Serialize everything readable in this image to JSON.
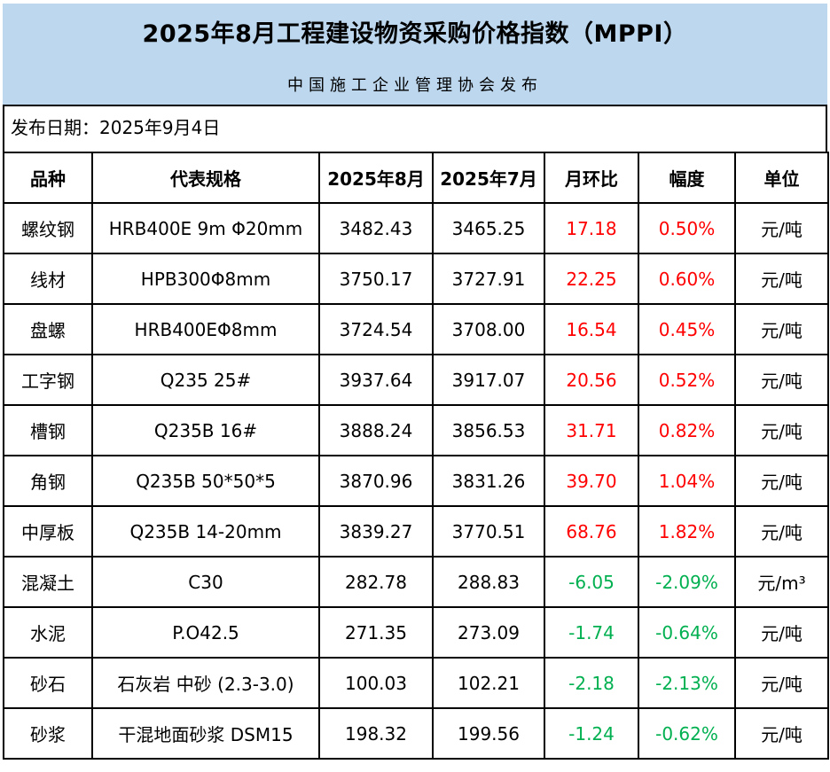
{
  "header": {
    "title": "2025年8月工程建设物资采购价格指数（MPPI）",
    "publisher": "中国施工企业管理协会发布",
    "release_date": "发布日期：2025年9月4日"
  },
  "table": {
    "columns": [
      "品种",
      "代表规格",
      "2025年8月",
      "2025年7月",
      "月环比",
      "幅度",
      "单位"
    ],
    "rows": [
      {
        "variety": "螺纹钢",
        "spec": "HRB400E 9m Φ20mm",
        "price_aug": "3482.43",
        "price_jul": "3465.25",
        "mom_change": "17.18",
        "change_rate": "0.50%",
        "unit": "元/吨",
        "trend": "up"
      },
      {
        "variety": "线材",
        "spec": "HPB300Φ8mm",
        "price_aug": "3750.17",
        "price_jul": "3727.91",
        "mom_change": "22.25",
        "change_rate": "0.60%",
        "unit": "元/吨",
        "trend": "up"
      },
      {
        "variety": "盘螺",
        "spec": "HRB400EΦ8mm",
        "price_aug": "3724.54",
        "price_jul": "3708.00",
        "mom_change": "16.54",
        "change_rate": "0.45%",
        "unit": "元/吨",
        "trend": "up"
      },
      {
        "variety": "工字钢",
        "spec": "Q235 25#",
        "price_aug": "3937.64",
        "price_jul": "3917.07",
        "mom_change": "20.56",
        "change_rate": "0.52%",
        "unit": "元/吨",
        "trend": "up"
      },
      {
        "variety": "槽钢",
        "spec": "Q235B 16#",
        "price_aug": "3888.24",
        "price_jul": "3856.53",
        "mom_change": "31.71",
        "change_rate": "0.82%",
        "unit": "元/吨",
        "trend": "up"
      },
      {
        "variety": "角钢",
        "spec": "Q235B 50*50*5",
        "price_aug": "3870.96",
        "price_jul": "3831.26",
        "mom_change": "39.70",
        "change_rate": "1.04%",
        "unit": "元/吨",
        "trend": "up"
      },
      {
        "variety": "中厚板",
        "spec": "Q235B 14-20mm",
        "price_aug": "3839.27",
        "price_jul": "3770.51",
        "mom_change": "68.76",
        "change_rate": "1.82%",
        "unit": "元/吨",
        "trend": "up"
      },
      {
        "variety": "混凝土",
        "spec": "C30",
        "price_aug": "282.78",
        "price_jul": "288.83",
        "mom_change": "-6.05",
        "change_rate": "-2.09%",
        "unit": "元/m³",
        "trend": "down"
      },
      {
        "variety": "水泥",
        "spec": "P.O42.5",
        "price_aug": "271.35",
        "price_jul": "273.09",
        "mom_change": "-1.74",
        "change_rate": "-0.64%",
        "unit": "元/吨",
        "trend": "down"
      },
      {
        "variety": "砂石",
        "spec": "石灰岩 中砂 (2.3-3.0)",
        "price_aug": "100.03",
        "price_jul": "102.21",
        "mom_change": "-2.18",
        "change_rate": "-2.13%",
        "unit": "元/吨",
        "trend": "down"
      },
      {
        "variety": "砂浆",
        "spec": "干混地面砂浆 DSM15",
        "price_aug": "198.32",
        "price_jul": "199.56",
        "mom_change": "-1.24",
        "change_rate": "-0.62%",
        "unit": "元/吨",
        "trend": "down"
      }
    ]
  },
  "colors": {
    "banner_bg": "#BDD7EE",
    "increase": "#FF0000",
    "decrease": "#00B050"
  }
}
